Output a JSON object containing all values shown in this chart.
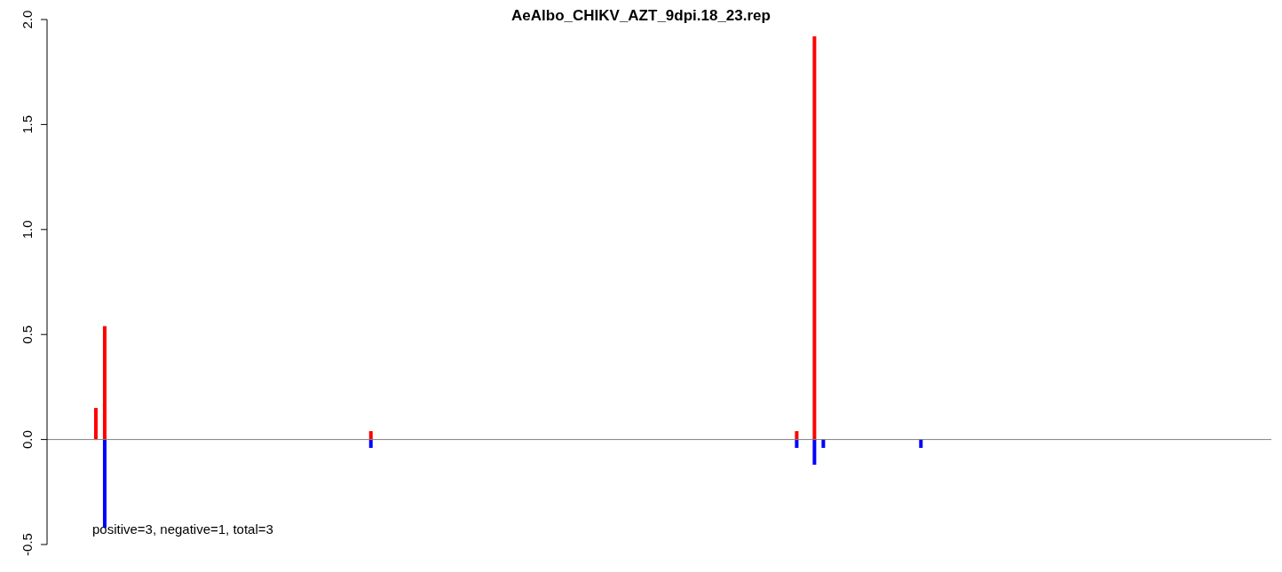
{
  "chart_data": {
    "type": "bar",
    "title": "AeAlbo_CHIKV_AZT_9dpi.18_23.rep",
    "categories": [
      null,
      null,
      null,
      null,
      null,
      null,
      null,
      null,
      null,
      null,
      null,
      null,
      null,
      null,
      null,
      null,
      null,
      null,
      null,
      null,
      null,
      null,
      null,
      null,
      null,
      null,
      null,
      null,
      null,
      null,
      null,
      null,
      null,
      null,
      null,
      null,
      null,
      null,
      null,
      null,
      null,
      null,
      null,
      null,
      null,
      null,
      null,
      null,
      null,
      null,
      null,
      null,
      null,
      null,
      null,
      null,
      null,
      null,
      null,
      null,
      null,
      null,
      null,
      null,
      null,
      null,
      null,
      null,
      null,
      null,
      null,
      null,
      null,
      null,
      null,
      null,
      null,
      null,
      null,
      null,
      null,
      null,
      null,
      null,
      null,
      null,
      null,
      null,
      null,
      null,
      null,
      null,
      null,
      null,
      null,
      null,
      null,
      null,
      null,
      null,
      null,
      null,
      null,
      null,
      null,
      null,
      null,
      null,
      null,
      null,
      null,
      null,
      null,
      null,
      null,
      null,
      null,
      null,
      null,
      null,
      null,
      null,
      null,
      null,
      null,
      null,
      null,
      null,
      null,
      null,
      null,
      null,
      null,
      null,
      null,
      null,
      null,
      null
    ],
    "stacked": true,
    "series": [
      {
        "color": "#ff0000",
        "values": [
          null,
          null,
          null,
          null,
          null,
          0.15,
          0.54,
          null,
          null,
          null,
          null,
          null,
          null,
          null,
          null,
          null,
          null,
          null,
          null,
          null,
          null,
          null,
          null,
          null,
          null,
          null,
          null,
          null,
          null,
          null,
          null,
          null,
          null,
          null,
          null,
          null,
          0.04,
          null,
          null,
          null,
          null,
          null,
          null,
          null,
          null,
          null,
          null,
          null,
          null,
          null,
          null,
          null,
          null,
          null,
          null,
          null,
          null,
          null,
          null,
          null,
          null,
          null,
          null,
          null,
          null,
          null,
          null,
          null,
          null,
          null,
          null,
          null,
          null,
          null,
          null,
          null,
          null,
          null,
          null,
          null,
          null,
          null,
          null,
          null,
          0.04,
          null,
          1.92,
          null,
          null,
          null,
          null,
          null,
          null,
          null,
          null,
          null,
          null,
          null,
          null,
          null,
          null,
          null,
          null,
          null,
          null,
          null,
          null,
          null,
          null,
          null,
          null,
          null,
          null,
          null,
          null,
          null,
          null,
          null,
          null,
          null,
          null,
          null,
          null,
          null,
          null,
          null,
          null,
          null,
          null,
          null,
          null,
          null,
          null,
          null,
          null,
          null,
          null,
          null
        ]
      },
      {
        "color": "#0000ff",
        "values": [
          null,
          null,
          null,
          null,
          null,
          null,
          -0.42,
          null,
          null,
          null,
          null,
          null,
          null,
          null,
          null,
          null,
          null,
          null,
          null,
          null,
          null,
          null,
          null,
          null,
          null,
          null,
          null,
          null,
          null,
          null,
          null,
          null,
          null,
          null,
          null,
          null,
          -0.04,
          null,
          null,
          null,
          null,
          null,
          null,
          null,
          null,
          null,
          null,
          null,
          null,
          null,
          null,
          null,
          null,
          null,
          null,
          null,
          null,
          null,
          null,
          null,
          null,
          null,
          null,
          null,
          null,
          null,
          null,
          null,
          null,
          null,
          null,
          null,
          null,
          null,
          null,
          null,
          null,
          null,
          null,
          null,
          null,
          null,
          null,
          null,
          -0.04,
          null,
          -0.12,
          -0.04,
          null,
          null,
          null,
          null,
          null,
          null,
          null,
          null,
          null,
          null,
          -0.04,
          null,
          null,
          null,
          null,
          null,
          null,
          null,
          null,
          null,
          null,
          null,
          null,
          null,
          null,
          null,
          null,
          null,
          null,
          null,
          null,
          null,
          null,
          null,
          null,
          null,
          null,
          null,
          null,
          null,
          null,
          null,
          null,
          null,
          null,
          null,
          null,
          null,
          null,
          null
        ]
      }
    ],
    "ylim": [
      -0.5,
      2.0
    ],
    "yticks": [
      {
        "value": -0.5,
        "label": "-0.5"
      },
      {
        "value": 0,
        "label": "0.0"
      },
      {
        "value": 0.5,
        "label": "0.5"
      },
      {
        "value": 1,
        "label": "1.0"
      },
      {
        "value": 1.5,
        "label": "1.5"
      },
      {
        "value": 2,
        "label": "2.0"
      }
    ],
    "tick_labels": "y",
    "ref_lines": [
      {
        "axis": "y",
        "value": 0,
        "color": "#808080"
      }
    ],
    "annotations": [
      "positive=3, negative=1, total=3"
    ]
  }
}
